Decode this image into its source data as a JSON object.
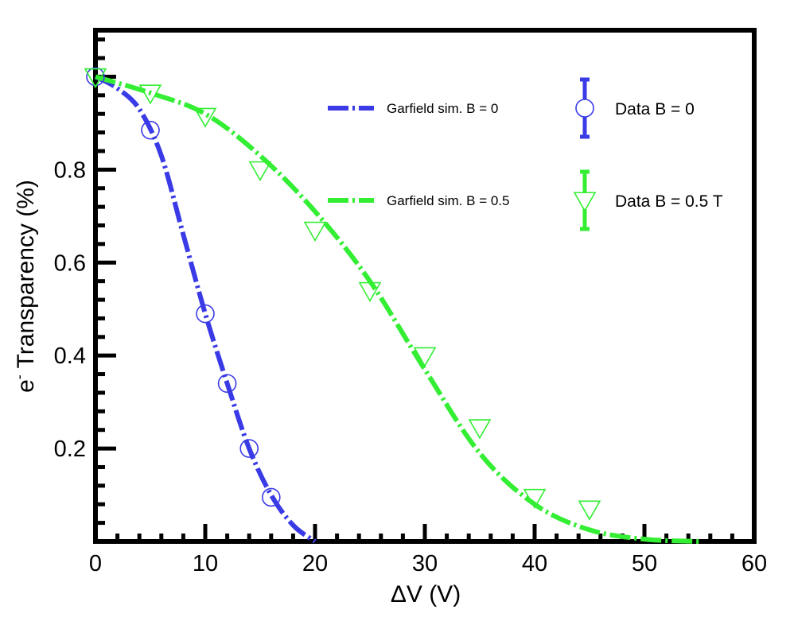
{
  "chart_data": {
    "type": "line",
    "xlabel": "ΔV (V)",
    "ylabel_main": "e",
    "ylabel_sup": "-",
    "ylabel_rest": " Transparency (%)",
    "xlim": [
      0,
      60
    ],
    "ylim": [
      0,
      1.1
    ],
    "x_ticks": [
      0,
      10,
      20,
      30,
      40,
      50,
      60
    ],
    "x_tick_labels": [
      "0",
      "10",
      "20",
      "30",
      "40",
      "50",
      "60"
    ],
    "y_ticks": [
      0.2,
      0.4,
      0.6,
      0.8
    ],
    "y_tick_labels": [
      "0.2",
      "0.4",
      "0.6",
      "0.8"
    ],
    "series": [
      {
        "name": "Garfield sim. B = 0",
        "kind": "curve",
        "color": "#3a3ae6",
        "style": "dash-dot",
        "x": [
          0,
          2,
          4,
          6,
          8,
          10,
          12,
          14,
          16,
          18,
          20
        ],
        "y": [
          1.0,
          0.975,
          0.93,
          0.83,
          0.66,
          0.49,
          0.34,
          0.2,
          0.1,
          0.035,
          0.0
        ]
      },
      {
        "name": "Garfield sim. B = 0.5",
        "kind": "curve",
        "color": "#33ee33",
        "style": "dash-dot",
        "x": [
          0,
          5,
          10,
          15,
          20,
          25,
          30,
          35,
          40,
          45,
          50,
          55
        ],
        "y": [
          1.0,
          0.965,
          0.92,
          0.83,
          0.71,
          0.56,
          0.37,
          0.19,
          0.08,
          0.025,
          0.005,
          0.0
        ]
      },
      {
        "name": "Data B = 0",
        "kind": "points",
        "marker": "circle",
        "color": "#3a3ae6",
        "x": [
          0,
          5,
          10,
          12,
          14,
          16
        ],
        "y": [
          1.0,
          0.885,
          0.49,
          0.34,
          0.2,
          0.095
        ]
      },
      {
        "name": "Data  B = 0.5 T",
        "kind": "points",
        "marker": "triangle-down",
        "color": "#33ee33",
        "x": [
          0,
          5,
          10,
          15,
          20,
          25,
          30,
          35,
          40,
          45
        ],
        "y": [
          1.0,
          0.965,
          0.915,
          0.8,
          0.67,
          0.54,
          0.4,
          0.245,
          0.095,
          0.07
        ]
      }
    ],
    "grid": false,
    "legend_position": "top-right"
  }
}
